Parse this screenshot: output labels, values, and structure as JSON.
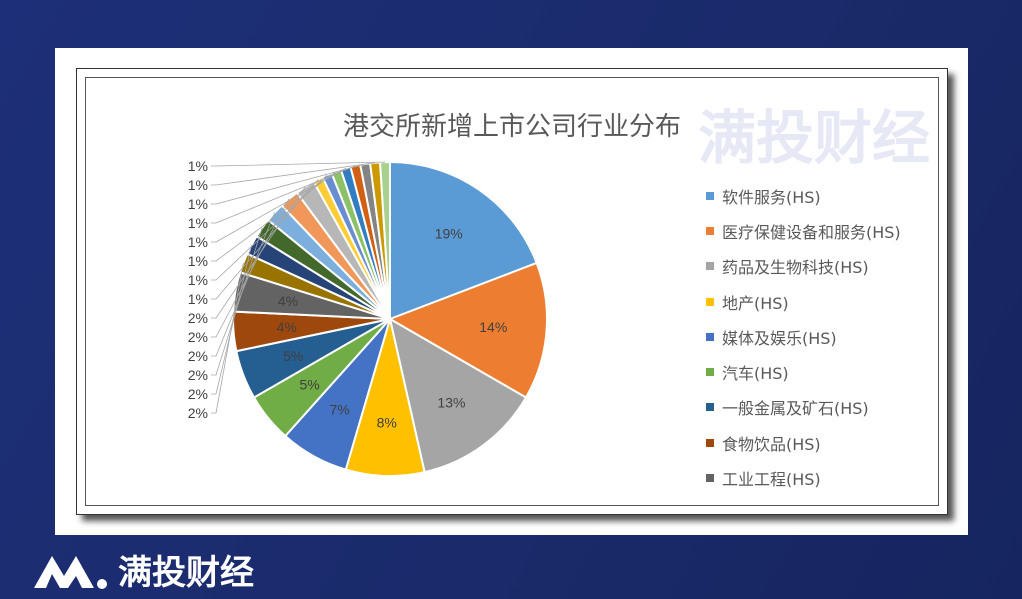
{
  "chart_data": {
    "type": "pie",
    "title": "港交所新增上市公司行业分布",
    "legend_position": "right",
    "categories": [
      "软件服务(HS)",
      "医疗保健设备和服务(HS)",
      "药品及生物科技(HS)",
      "地产(HS)",
      "媒体及娱乐(HS)",
      "汽车(HS)",
      "一般金属及矿石(HS)",
      "食物饮品(HS)",
      "工业工程(HS)",
      "",
      "",
      "",
      "",
      "",
      "",
      "",
      "",
      "",
      "",
      "",
      "",
      "",
      ""
    ],
    "values": [
      19,
      14,
      13,
      8,
      7,
      5,
      5,
      4,
      4,
      2,
      2,
      2,
      2,
      2,
      2,
      1,
      1,
      1,
      1,
      1,
      1,
      1,
      1
    ],
    "colors": [
      "#5B9BD5",
      "#ED7D31",
      "#A5A5A5",
      "#FFC000",
      "#4472C4",
      "#70AD47",
      "#255E91",
      "#9E480E",
      "#636363",
      "#997300",
      "#264478",
      "#43682B",
      "#7CAFDD",
      "#F1975A",
      "#B7B7B7",
      "#FFCD33",
      "#698ED0",
      "#8CC168",
      "#327DC2",
      "#D26012",
      "#848484",
      "#CC9A00",
      "#A9D18E"
    ]
  },
  "watermark": "满投财经",
  "logo": {
    "text": "满投财经"
  }
}
